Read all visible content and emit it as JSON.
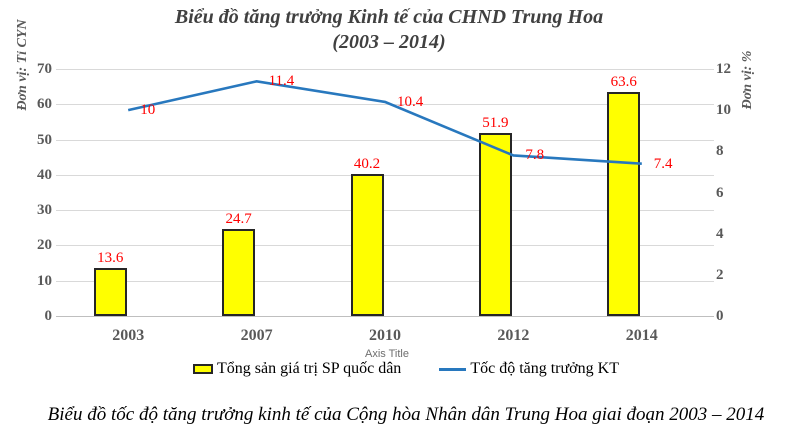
{
  "title": {
    "line1": "Biểu đồ tăng trưởng Kinh tế của CHND Trung Hoa",
    "line2": "(2003 – 2014)"
  },
  "caption": "Biểu đồ tốc độ tăng trưởng kinh tế của Cộng hòa Nhân dân Trung Hoa giai đoạn 2003 – 2014",
  "axes": {
    "left": {
      "title": "Đơn vị: Tỉ CYN",
      "ticks": [
        "0",
        "10",
        "20",
        "30",
        "40",
        "50",
        "60",
        "70"
      ],
      "max": 70
    },
    "right": {
      "title": "Đơn vị: %",
      "ticks": [
        "0",
        "2",
        "4",
        "6",
        "8",
        "10",
        "12"
      ],
      "max": 12
    },
    "x": {
      "title": "Axis Title",
      "categories": [
        "2003",
        "2007",
        "2010",
        "2012",
        "2014"
      ]
    }
  },
  "legend": {
    "bar_label": "Tổng sản giá trị SP quốc dân",
    "line_label": "Tốc độ tăng trưởng KT"
  },
  "colors": {
    "bar_fill": "#FFFF00",
    "bar_border": "#262626",
    "line": "#2878BE",
    "data_label": "#FF0000",
    "axis_text": "#595959",
    "grid": "#D9D9D9",
    "axis_line": "#BFBFBF",
    "title_text": "#404040"
  },
  "chart_data": {
    "type": "combo",
    "categories": [
      "2003",
      "2007",
      "2010",
      "2012",
      "2014"
    ],
    "series": [
      {
        "name": "Tổng sản giá trị SP quốc dân",
        "type": "bar",
        "axis": "left",
        "values": [
          13.6,
          24.7,
          40.2,
          51.9,
          63.6
        ],
        "color": "#FFFF00"
      },
      {
        "name": "Tốc độ tăng trưởng KT",
        "type": "line",
        "axis": "right",
        "values": [
          10,
          11.4,
          10.4,
          7.8,
          7.4
        ],
        "color": "#2878BE"
      }
    ],
    "title": "Biểu đồ tăng trưởng Kinh tế của CHND Trung Hoa (2003 – 2014)",
    "xlabel": "Axis Title",
    "ylabel_left": "Đơn vị: Tỉ CYN",
    "ylabel_right": "Đơn vị: %",
    "ylim_left": [
      0,
      70
    ],
    "ylim_right": [
      0,
      12
    ],
    "grid": true,
    "legend_position": "bottom",
    "data_label_color": "#FF0000"
  }
}
